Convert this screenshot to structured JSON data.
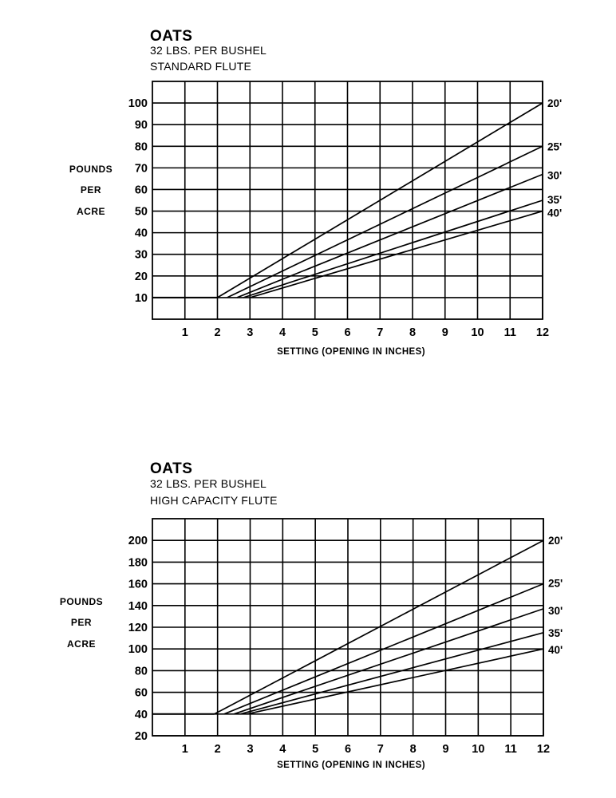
{
  "charts": [
    {
      "title": "OATS",
      "subtitle_1": "32 LBS. PER BUSHEL",
      "subtitle_2": "STANDARD FLUTE",
      "ylabel_lines": [
        "POUNDS",
        "PER",
        "ACRE"
      ],
      "xlabel": "SETTING (OPENING IN INCHES)"
    },
    {
      "title": "OATS",
      "subtitle_1": "32 LBS. PER BUSHEL",
      "subtitle_2": "HIGH CAPACITY FLUTE",
      "ylabel_lines": [
        "POUNDS",
        "PER",
        "ACRE"
      ],
      "xlabel": "SETTING (OPENING IN INCHES)"
    }
  ],
  "chart_data": [
    {
      "type": "line",
      "title": "OATS - 32 LBS. PER BUSHEL - STANDARD FLUTE",
      "xlabel": "SETTING (OPENING IN INCHES)",
      "ylabel": "POUNDS PER ACRE",
      "xlim": [
        0,
        12
      ],
      "ylim": [
        0,
        110
      ],
      "x_ticks": [
        1,
        2,
        3,
        4,
        5,
        6,
        7,
        8,
        9,
        10,
        11,
        12
      ],
      "y_ticks": [
        10,
        20,
        30,
        40,
        50,
        60,
        70,
        80,
        90,
        100
      ],
      "grid": true,
      "legend_position": "right-end labels",
      "baseline": {
        "x": [
          0,
          2
        ],
        "y": [
          10,
          10
        ]
      },
      "series": [
        {
          "name": "20'",
          "x": [
            2.0,
            12
          ],
          "y": [
            10,
            100
          ]
        },
        {
          "name": "25'",
          "x": [
            2.3,
            12
          ],
          "y": [
            10,
            80
          ]
        },
        {
          "name": "30'",
          "x": [
            2.6,
            12
          ],
          "y": [
            10,
            67
          ]
        },
        {
          "name": "35'",
          "x": [
            2.8,
            12
          ],
          "y": [
            10,
            55
          ]
        },
        {
          "name": "40'",
          "x": [
            3.0,
            12
          ],
          "y": [
            10,
            50
          ]
        }
      ]
    },
    {
      "type": "line",
      "title": "OATS - 32 LBS. PER BUSHEL - HIGH CAPACITY FLUTE",
      "xlabel": "SETTING (OPENING IN INCHES)",
      "ylabel": "POUNDS PER ACRE",
      "xlim": [
        0,
        12
      ],
      "ylim": [
        20,
        220
      ],
      "x_ticks": [
        1,
        2,
        3,
        4,
        5,
        6,
        7,
        8,
        9,
        10,
        11,
        12
      ],
      "y_ticks": [
        20,
        40,
        60,
        80,
        100,
        120,
        140,
        160,
        180,
        200
      ],
      "grid": true,
      "legend_position": "right-end labels",
      "baseline": {
        "x": [
          0,
          1.9
        ],
        "y": [
          40,
          40
        ]
      },
      "series": [
        {
          "name": "20'",
          "x": [
            1.9,
            12
          ],
          "y": [
            40,
            200
          ]
        },
        {
          "name": "25'",
          "x": [
            2.2,
            12
          ],
          "y": [
            40,
            160
          ]
        },
        {
          "name": "30'",
          "x": [
            2.5,
            12
          ],
          "y": [
            40,
            137
          ]
        },
        {
          "name": "35'",
          "x": [
            2.7,
            12
          ],
          "y": [
            40,
            115
          ]
        },
        {
          "name": "40'",
          "x": [
            2.9,
            12
          ],
          "y": [
            40,
            100
          ]
        }
      ]
    }
  ]
}
